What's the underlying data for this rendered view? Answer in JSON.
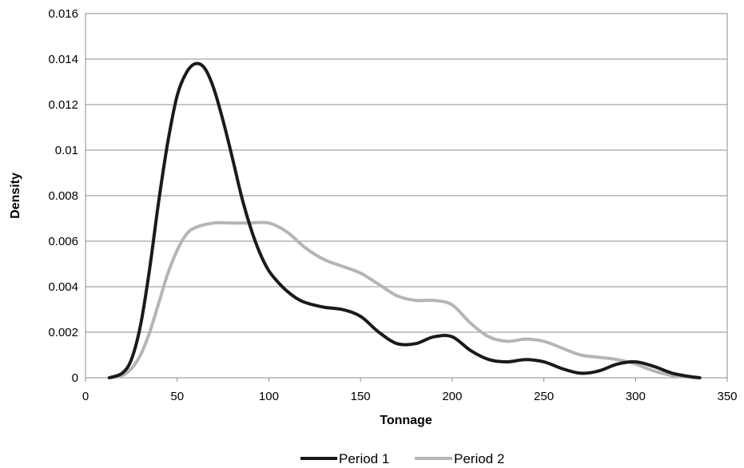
{
  "chart_data": {
    "type": "line",
    "title": "",
    "xlabel": "Tonnage",
    "ylabel": "Density",
    "xlim": [
      0,
      350
    ],
    "ylim": [
      0,
      0.016
    ],
    "x_ticks": [
      0,
      50,
      100,
      150,
      200,
      250,
      300,
      350
    ],
    "x_tick_labels": [
      "0",
      "50",
      "100",
      "150",
      "200",
      "250",
      "300",
      "350"
    ],
    "y_ticks": [
      0,
      0.002,
      0.004,
      0.006,
      0.008,
      0.01,
      0.012,
      0.014,
      0.016
    ],
    "y_tick_labels": [
      "0",
      "0.002",
      "0.004",
      "0.006",
      "0.008",
      "0.01",
      "0.012",
      "0.014",
      "0.016"
    ],
    "grid": "horizontal",
    "legend_position": "bottom",
    "series": [
      {
        "name": "Period 1",
        "color": "#1a1a1a",
        "points": [
          [
            13,
            0
          ],
          [
            20,
            0.0002
          ],
          [
            25,
            0.0008
          ],
          [
            30,
            0.0023
          ],
          [
            35,
            0.0048
          ],
          [
            40,
            0.0078
          ],
          [
            45,
            0.0104
          ],
          [
            50,
            0.0124
          ],
          [
            55,
            0.0134
          ],
          [
            60,
            0.0138
          ],
          [
            65,
            0.0136
          ],
          [
            70,
            0.0127
          ],
          [
            75,
            0.0113
          ],
          [
            80,
            0.0097
          ],
          [
            85,
            0.008
          ],
          [
            90,
            0.0066
          ],
          [
            95,
            0.0055
          ],
          [
            100,
            0.0047
          ],
          [
            105,
            0.0042
          ],
          [
            110,
            0.0038
          ],
          [
            115,
            0.0035
          ],
          [
            120,
            0.0033
          ],
          [
            130,
            0.0031
          ],
          [
            140,
            0.003
          ],
          [
            150,
            0.0027
          ],
          [
            160,
            0.002
          ],
          [
            170,
            0.0015
          ],
          [
            180,
            0.0015
          ],
          [
            190,
            0.0018
          ],
          [
            200,
            0.0018
          ],
          [
            210,
            0.0012
          ],
          [
            220,
            0.0008
          ],
          [
            230,
            0.0007
          ],
          [
            240,
            0.0008
          ],
          [
            250,
            0.0007
          ],
          [
            260,
            0.0004
          ],
          [
            270,
            0.0002
          ],
          [
            280,
            0.0003
          ],
          [
            290,
            0.0006
          ],
          [
            300,
            0.0007
          ],
          [
            310,
            0.0005
          ],
          [
            320,
            0.0002
          ],
          [
            330,
            5e-05
          ],
          [
            335,
            0
          ]
        ]
      },
      {
        "name": "Period 2",
        "color": "#b5b5b5",
        "points": [
          [
            13,
            0
          ],
          [
            20,
            0.0001
          ],
          [
            25,
            0.0004
          ],
          [
            30,
            0.001
          ],
          [
            35,
            0.002
          ],
          [
            40,
            0.0033
          ],
          [
            45,
            0.0046
          ],
          [
            50,
            0.0056
          ],
          [
            55,
            0.0063
          ],
          [
            60,
            0.0066
          ],
          [
            70,
            0.0068
          ],
          [
            80,
            0.0068
          ],
          [
            90,
            0.0068
          ],
          [
            100,
            0.0068
          ],
          [
            110,
            0.0064
          ],
          [
            120,
            0.0057
          ],
          [
            130,
            0.0052
          ],
          [
            140,
            0.0049
          ],
          [
            150,
            0.0046
          ],
          [
            160,
            0.0041
          ],
          [
            170,
            0.0036
          ],
          [
            180,
            0.0034
          ],
          [
            190,
            0.0034
          ],
          [
            200,
            0.0032
          ],
          [
            210,
            0.0024
          ],
          [
            220,
            0.0018
          ],
          [
            230,
            0.0016
          ],
          [
            240,
            0.0017
          ],
          [
            250,
            0.0016
          ],
          [
            260,
            0.0013
          ],
          [
            270,
            0.001
          ],
          [
            280,
            0.0009
          ],
          [
            290,
            0.0008
          ],
          [
            300,
            0.0006
          ],
          [
            310,
            0.0003
          ],
          [
            320,
            0.0001
          ],
          [
            330,
            2e-05
          ],
          [
            335,
            0
          ]
        ]
      }
    ]
  }
}
